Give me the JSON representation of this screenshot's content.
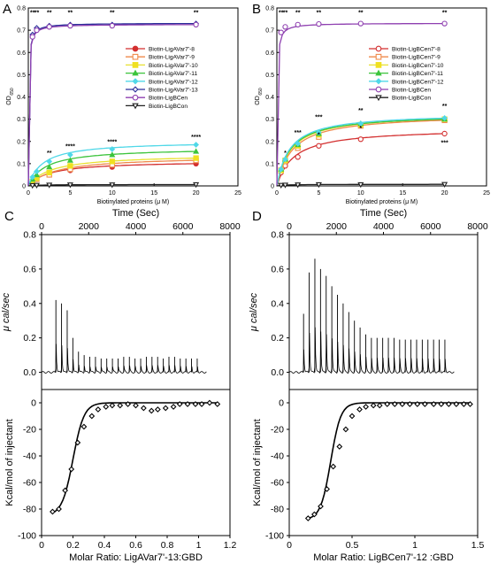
{
  "panel_labels": [
    "A",
    "B",
    "C",
    "D"
  ],
  "colors": {
    "s8": "#d32f2f",
    "s9": "#ef8a4a",
    "s10": "#e8e030",
    "s11": "#3cc43c",
    "s12": "#50d8e8",
    "s13": "#2b2f9a",
    "sCen": "#8e3fb0",
    "sCon": "#222222",
    "marker10": "#f0e020"
  },
  "chart_data": [
    {
      "type": "line",
      "panel": "A",
      "xlabel": "Biotinylated proteins (μ M)",
      "ylabel": "OD",
      "ylabel_sub": "650",
      "xlim": [
        0,
        25
      ],
      "ylim": [
        0,
        0.8
      ],
      "xticks": [
        "0",
        "5",
        "10",
        "15",
        "20",
        "25"
      ],
      "yticks": [
        "0",
        "0.1",
        "0.2",
        "0.3",
        "0.4",
        "0.5",
        "0.6",
        "0.7",
        "0.8"
      ],
      "legend_position": "right",
      "x": [
        0,
        0.5,
        1,
        2.5,
        5,
        10,
        20
      ],
      "series": [
        {
          "name": "Biotin-LigAVar7'-8",
          "values": [
            0,
            0.02,
            0.03,
            0.05,
            0.07,
            0.085,
            0.1
          ],
          "marker": "circle",
          "colorKey": "s8"
        },
        {
          "name": "Biotin-LigAVar7'-9",
          "values": [
            0,
            0.02,
            0.03,
            0.05,
            0.075,
            0.095,
            0.115
          ],
          "marker": "square-open",
          "colorKey": "s9"
        },
        {
          "name": "Biotin-LigAVar7'-10",
          "values": [
            0,
            0.02,
            0.035,
            0.06,
            0.09,
            0.11,
            0.125
          ],
          "marker": "square",
          "colorKey": "s10"
        },
        {
          "name": "Biotin-LigAVar7'-11",
          "values": [
            0,
            0.03,
            0.05,
            0.085,
            0.115,
            0.14,
            0.155
          ],
          "marker": "triangle",
          "colorKey": "s11"
        },
        {
          "name": "Biotin-LigAVar7'-12",
          "values": [
            0,
            0.04,
            0.065,
            0.11,
            0.14,
            0.165,
            0.185
          ],
          "marker": "diamond",
          "colorKey": "s12"
        },
        {
          "name": "Biotin-LigAVar7'-13",
          "values": [
            0,
            0.68,
            0.71,
            0.72,
            0.725,
            0.725,
            0.73
          ],
          "marker": "diamond-open",
          "colorKey": "s13"
        },
        {
          "name": "Biotin-LigBCen",
          "values": [
            0,
            0.67,
            0.7,
            0.715,
            0.72,
            0.72,
            0.725
          ],
          "marker": "circle-open",
          "colorKey": "sCen"
        },
        {
          "name": "Biotin-LigBCon",
          "values": [
            0,
            0.002,
            0.003,
            0.004,
            0.005,
            0.005,
            0.006
          ],
          "marker": "triangle-down-open",
          "colorKey": "sCon"
        }
      ],
      "annotations": [
        {
          "x": 0.5,
          "y": 0.77,
          "text": "**"
        },
        {
          "x": 1,
          "y": 0.77,
          "text": "**"
        },
        {
          "x": 2.5,
          "y": 0.77,
          "text": "**"
        },
        {
          "x": 5,
          "y": 0.77,
          "text": "**"
        },
        {
          "x": 10,
          "y": 0.77,
          "text": "**"
        },
        {
          "x": 20,
          "y": 0.77,
          "text": "**"
        },
        {
          "x": 2.5,
          "y": 0.14,
          "text": "**"
        },
        {
          "x": 5,
          "y": 0.17,
          "text": "****"
        },
        {
          "x": 10,
          "y": 0.19,
          "text": "****"
        },
        {
          "x": 20,
          "y": 0.21,
          "text": "****"
        }
      ]
    },
    {
      "type": "line",
      "panel": "B",
      "xlabel": "Biotinylated proteins (μ M)",
      "ylabel": "OD",
      "ylabel_sub": "650",
      "xlim": [
        0,
        25
      ],
      "ylim": [
        0,
        0.8
      ],
      "xticks": [
        "0",
        "5",
        "10",
        "15",
        "20",
        "25"
      ],
      "yticks": [
        "0",
        "0.1",
        "0.2",
        "0.3",
        "0.4",
        "0.5",
        "0.6",
        "0.7",
        "0.8"
      ],
      "legend_position": "right",
      "x": [
        0,
        0.5,
        1,
        2.5,
        5,
        10,
        20
      ],
      "series": [
        {
          "name": "Biotin-LigBCen7'-8",
          "values": [
            0,
            0.06,
            0.09,
            0.13,
            0.18,
            0.21,
            0.235
          ],
          "marker": "circle-open",
          "colorKey": "s8"
        },
        {
          "name": "Biotin-LigBCen7'-9",
          "values": [
            0,
            0.07,
            0.11,
            0.17,
            0.22,
            0.27,
            0.295
          ],
          "marker": "square-open",
          "colorKey": "s9"
        },
        {
          "name": "Biotin-LigBCen7'-10",
          "values": [
            0,
            0.07,
            0.115,
            0.18,
            0.23,
            0.275,
            0.3
          ],
          "marker": "square",
          "colorKey": "s10"
        },
        {
          "name": "Biotin-LigBCen7'-11",
          "values": [
            0,
            0.075,
            0.12,
            0.185,
            0.235,
            0.28,
            0.3
          ],
          "marker": "triangle",
          "colorKey": "s11"
        },
        {
          "name": "Biotin-LigBCen7'-12",
          "values": [
            0,
            0.075,
            0.12,
            0.19,
            0.24,
            0.28,
            0.305
          ],
          "marker": "diamond",
          "colorKey": "s12"
        },
        {
          "name": "Biotin-LigBCen",
          "values": [
            0,
            0.69,
            0.715,
            0.725,
            0.728,
            0.73,
            0.73
          ],
          "marker": "circle-open",
          "colorKey": "sCen"
        },
        {
          "name": "Biotin-LigBCon",
          "values": [
            0,
            0.003,
            0.004,
            0.005,
            0.006,
            0.006,
            0.007
          ],
          "marker": "triangle-down-open",
          "colorKey": "sCon"
        }
      ],
      "annotations": [
        {
          "x": 0.5,
          "y": 0.77,
          "text": "**"
        },
        {
          "x": 1,
          "y": 0.77,
          "text": "**"
        },
        {
          "x": 2.5,
          "y": 0.77,
          "text": "**"
        },
        {
          "x": 5,
          "y": 0.77,
          "text": "**"
        },
        {
          "x": 10,
          "y": 0.77,
          "text": "**"
        },
        {
          "x": 20,
          "y": 0.77,
          "text": "**"
        },
        {
          "x": 2.5,
          "y": 0.23,
          "text": "***"
        },
        {
          "x": 5,
          "y": 0.3,
          "text": "***"
        },
        {
          "x": 10,
          "y": 0.33,
          "text": "**"
        },
        {
          "x": 20,
          "y": 0.35,
          "text": "**"
        },
        {
          "x": 1,
          "y": 0.14,
          "text": "*"
        },
        {
          "x": 5,
          "y": 0.22,
          "text": "*"
        },
        {
          "x": 10,
          "y": 0.25,
          "text": "*"
        },
        {
          "x": 20,
          "y": 0.185,
          "text": "***"
        }
      ]
    },
    {
      "type": "line",
      "panel": "C",
      "title": "Time (Sec)",
      "ylabel": "μ cal/sec",
      "xlim": [
        0,
        8000
      ],
      "ylim": [
        -0.1,
        0.8
      ],
      "xticks": [
        "0",
        "2000",
        "4000",
        "6000",
        "8000"
      ],
      "yticks": [
        "0.0",
        "0.2",
        "0.4",
        "0.6",
        "0.8"
      ],
      "injection_start": 600,
      "injection_interval": 240,
      "injection_peaks": [
        0.42,
        0.4,
        0.36,
        0.2,
        0.12,
        0.1,
        0.09,
        0.09,
        0.08,
        0.08,
        0.08,
        0.08,
        0.09,
        0.09,
        0.08,
        0.08,
        0.09,
        0.09,
        0.09,
        0.08,
        0.09,
        0.09,
        0.08,
        0.08,
        0.08,
        0.08
      ]
    },
    {
      "type": "scatter",
      "panel": "C",
      "xlabel": "Molar Ratio: LigAVar7'-13:GBD",
      "ylabel": "Kcal/mol of injectant",
      "xlim": [
        0,
        1.2
      ],
      "ylim": [
        -100,
        10
      ],
      "xticks": [
        "0",
        "0.2",
        "0.4",
        "0.6",
        "0.8",
        "1",
        "1.2"
      ],
      "yticks": [
        "0",
        "-20",
        "-40",
        "-60",
        "-80",
        "-100"
      ],
      "x": [
        0.07,
        0.11,
        0.15,
        0.19,
        0.23,
        0.27,
        0.32,
        0.36,
        0.41,
        0.45,
        0.5,
        0.55,
        0.6,
        0.65,
        0.7,
        0.74,
        0.79,
        0.84,
        0.88,
        0.93,
        0.98,
        1.02,
        1.07,
        1.12
      ],
      "values": [
        -82,
        -80,
        -66,
        -50,
        -30,
        -18,
        -10,
        -5,
        -3,
        -2,
        -2,
        -1,
        -2,
        -4,
        -6,
        -5,
        -4,
        -3,
        -1,
        -1,
        -1,
        -1,
        0,
        -1
      ],
      "fit": {
        "n": 0.2,
        "dh": -85,
        "k": 0.035
      }
    },
    {
      "type": "line",
      "panel": "D",
      "title": "Time (Sec)",
      "ylabel": "μ cal/sec",
      "xlim": [
        0,
        8000
      ],
      "ylim": [
        -0.1,
        0.8
      ],
      "xticks": [
        "0",
        "2000",
        "4000",
        "6000",
        "8000"
      ],
      "yticks": [
        "0.0",
        "0.2",
        "0.4",
        "0.6",
        "0.8"
      ],
      "injection_start": 600,
      "injection_interval": 240,
      "injection_peaks": [
        0.34,
        0.58,
        0.66,
        0.6,
        0.56,
        0.5,
        0.45,
        0.4,
        0.35,
        0.3,
        0.26,
        0.22,
        0.2,
        0.2,
        0.2,
        0.2,
        0.2,
        0.19,
        0.19,
        0.19,
        0.19,
        0.19,
        0.19,
        0.19,
        0.19,
        0.19
      ]
    },
    {
      "type": "scatter",
      "panel": "D",
      "xlabel": "Molar Ratio: LigBCen7'-12 :GBD",
      "ylabel": "Kcal/mol of injectant",
      "xlim": [
        0,
        1.5
      ],
      "ylim": [
        -100,
        10
      ],
      "xticks": [
        "0",
        "0.5",
        "1",
        "1.5"
      ],
      "yticks": [
        "0",
        "-20",
        "-40",
        "-60",
        "-80",
        "-100"
      ],
      "x": [
        0.15,
        0.2,
        0.25,
        0.3,
        0.35,
        0.4,
        0.45,
        0.5,
        0.56,
        0.61,
        0.67,
        0.72,
        0.78,
        0.84,
        0.9,
        0.96,
        1.02,
        1.08,
        1.15,
        1.21,
        1.27,
        1.33,
        1.39,
        1.44
      ],
      "values": [
        -87,
        -84,
        -78,
        -65,
        -48,
        -33,
        -20,
        -10,
        -5,
        -3,
        -2,
        -2,
        -1,
        -1,
        -1,
        -1,
        -1,
        -1,
        -1,
        -1,
        -1,
        -1,
        -1,
        -1
      ],
      "fit": {
        "n": 0.33,
        "dh": -88,
        "k": 0.04
      }
    }
  ]
}
